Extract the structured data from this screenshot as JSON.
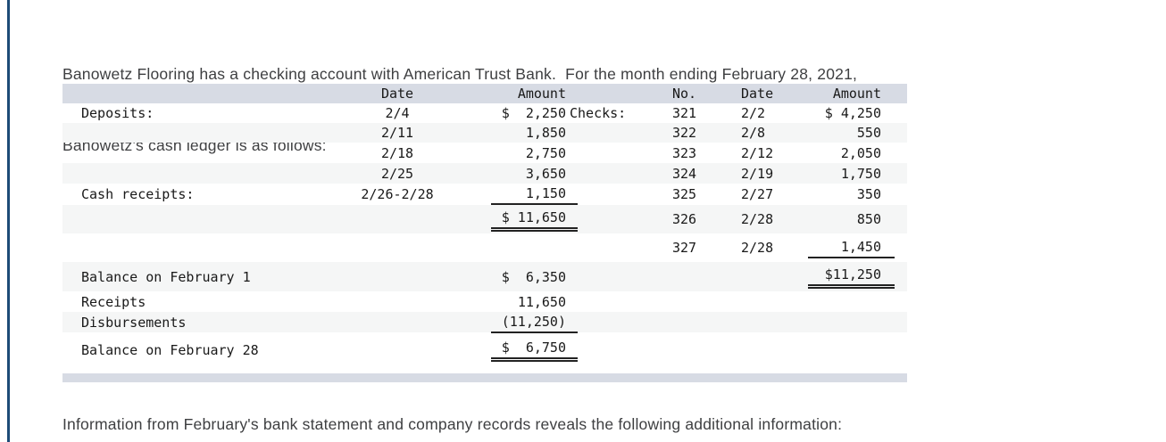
{
  "intro": {
    "lines": [
      "Banowetz Flooring has a checking account with American Trust Bank.  For the month ending February 28, 2021,",
      "Banowetz's cash ledger is as follows:"
    ]
  },
  "footer": {
    "text": "Information from February's bank statement and company records reveals the following additional information:"
  },
  "colors": {
    "accent_bar": "#1d4b77",
    "table_header_bar": "#d7dbe4",
    "row_stripe": "#f5f6f6",
    "text": "#3e3f41",
    "table_text": "#191919"
  },
  "ledger": {
    "header": {
      "date": "Date",
      "amount": "Amount",
      "no": "No.",
      "date2": "Date",
      "amount2": "Amount"
    },
    "rows": [
      {
        "label": "Deposits:",
        "date": "2/4",
        "amount": "$  2,250",
        "checks_label": "Checks:",
        "no": "321",
        "cdate": "2/2",
        "camount": "$ 4,250"
      },
      {
        "label": "",
        "date": "2/11",
        "amount": "1,850",
        "no": "322",
        "cdate": "2/8",
        "camount": "550"
      },
      {
        "label": "",
        "date": "2/18",
        "amount": "2,750",
        "no": "323",
        "cdate": "2/12",
        "camount": "2,050"
      },
      {
        "label": "",
        "date": "2/25",
        "amount": "3,650",
        "no": "324",
        "cdate": "2/19",
        "camount": "1,750"
      },
      {
        "label": "Cash receipts:",
        "date": "2/26-2/28",
        "amount": "1,150",
        "no": "325",
        "cdate": "2/27",
        "camount": "350"
      },
      {
        "label": "",
        "date": "",
        "amount": "$ 11,650",
        "no": "326",
        "cdate": "2/28",
        "camount": "850"
      },
      {
        "label": "",
        "date": "",
        "amount": "",
        "no": "327",
        "cdate": "2/28",
        "camount": "1,450"
      },
      {
        "label": "Balance on February 1",
        "date": "",
        "amount": "$  6,350",
        "no": "",
        "cdate": "",
        "camount": "$11,250"
      },
      {
        "label": "Receipts",
        "date": "",
        "amount": "11,650",
        "no": "",
        "cdate": "",
        "camount": ""
      },
      {
        "label": "Disbursements",
        "date": "",
        "amount": "(11,250)",
        "no": "",
        "cdate": "",
        "camount": ""
      },
      {
        "label": "Balance on February 28",
        "date": "",
        "amount": "$  6,750",
        "no": "",
        "cdate": "",
        "camount": ""
      }
    ]
  }
}
